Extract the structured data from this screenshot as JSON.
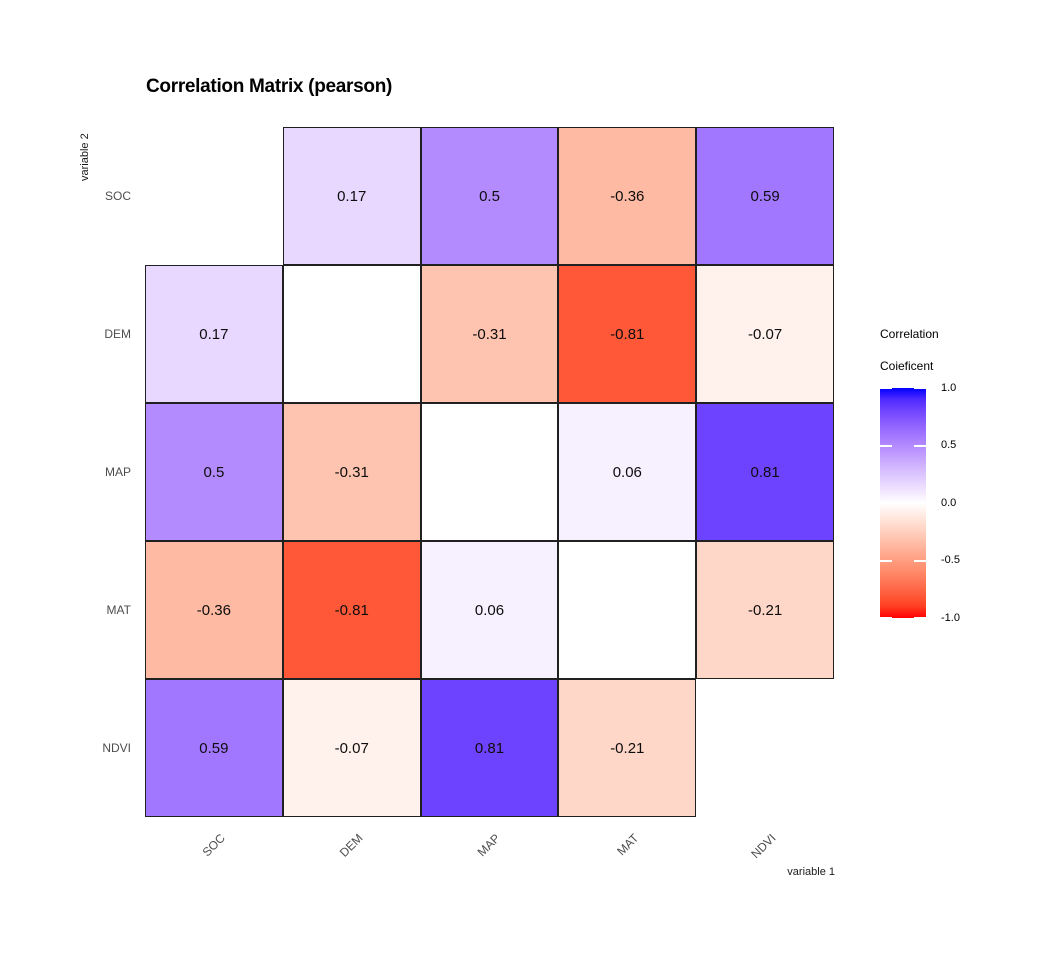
{
  "chart_data": {
    "type": "heatmap",
    "title": "Correlation Matrix (pearson)",
    "xlabel": "variable 1",
    "ylabel": "variable 2",
    "x_categories": [
      "SOC",
      "DEM",
      "MAP",
      "MAT",
      "NDVI"
    ],
    "y_categories": [
      "SOC",
      "DEM",
      "MAP",
      "MAT",
      "NDVI"
    ],
    "matrix": [
      [
        null,
        0.17,
        0.5,
        -0.36,
        0.59
      ],
      [
        0.17,
        null,
        -0.31,
        -0.81,
        -0.07
      ],
      [
        0.5,
        -0.31,
        null,
        0.06,
        0.81
      ],
      [
        -0.36,
        -0.81,
        0.06,
        null,
        -0.21
      ],
      [
        0.59,
        -0.07,
        0.81,
        -0.21,
        null
      ]
    ],
    "absent_cells": [
      [
        0,
        0
      ],
      [
        4,
        4
      ]
    ],
    "blank_diagonal_cells": [
      [
        1,
        1
      ],
      [
        2,
        2
      ],
      [
        3,
        3
      ]
    ],
    "grid": false,
    "colors": {
      "high": "#0000FF",
      "mid": "#FFFFFF",
      "low": "#FF0000",
      "cell_border": "#202020",
      "axis_text": "#4D4D4D",
      "value_text": "#0D0D0D"
    },
    "legend": {
      "title_line1": "Correlation",
      "title_line2": "Coieficent",
      "position": "right",
      "range": [
        -1,
        1
      ],
      "ticks": [
        {
          "label": "1.0",
          "value": 1.0
        },
        {
          "label": "0.5",
          "value": 0.5
        },
        {
          "label": "0.0",
          "value": 0.0
        },
        {
          "label": "-0.5",
          "value": -0.5
        },
        {
          "label": "-1.0",
          "value": -1.0
        }
      ]
    }
  }
}
